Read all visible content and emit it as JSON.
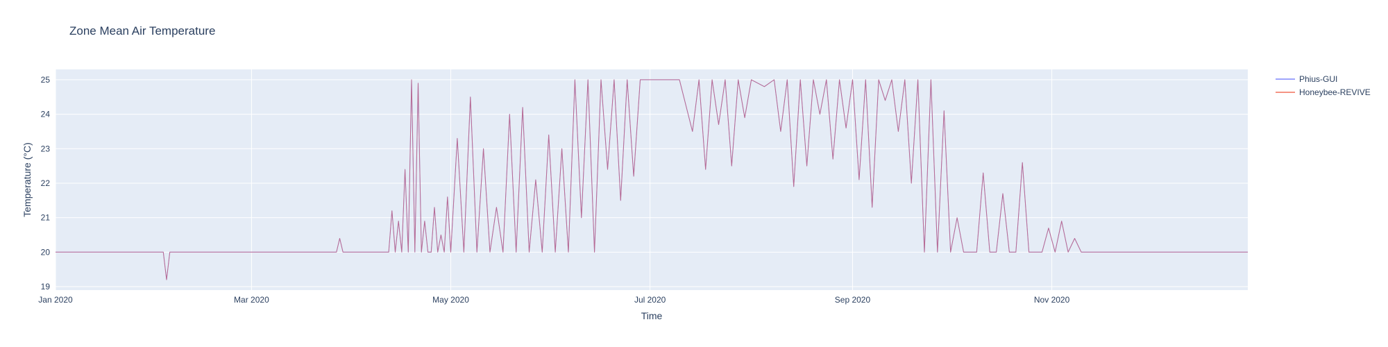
{
  "chart_data": {
    "type": "line",
    "title": "Zone Mean Air Temperature",
    "xlabel": "Time",
    "ylabel": "Temperature (°C)",
    "x_range": [
      "2020-01-01",
      "2020-12-31"
    ],
    "ylim": [
      18.9,
      25.3
    ],
    "y_ticks": [
      "19",
      "20",
      "21",
      "22",
      "23",
      "24",
      "25"
    ],
    "x_ticks": [
      {
        "date": "2020-01-01",
        "label": "Jan 2020"
      },
      {
        "date": "2020-03-01",
        "label": "Mar 2020"
      },
      {
        "date": "2020-05-01",
        "label": "May 2020"
      },
      {
        "date": "2020-07-01",
        "label": "Jul 2020"
      },
      {
        "date": "2020-09-01",
        "label": "Sep 2020"
      },
      {
        "date": "2020-11-01",
        "label": "Nov 2020"
      }
    ],
    "grid": true,
    "legend_position": "top-right",
    "series": [
      {
        "name": "Phius-GUI",
        "color": "#636efa",
        "x": [
          "2020-01-01",
          "2020-02-03",
          "2020-02-04",
          "2020-02-05",
          "2020-03-27",
          "2020-03-28",
          "2020-03-29",
          "2020-04-12",
          "2020-04-13",
          "2020-04-14",
          "2020-04-15",
          "2020-04-16",
          "2020-04-17",
          "2020-04-18",
          "2020-04-19",
          "2020-04-20",
          "2020-04-21",
          "2020-04-22",
          "2020-04-23",
          "2020-04-24",
          "2020-04-25",
          "2020-04-26",
          "2020-04-27",
          "2020-04-28",
          "2020-04-29",
          "2020-04-30",
          "2020-05-01",
          "2020-05-03",
          "2020-05-05",
          "2020-05-07",
          "2020-05-09",
          "2020-05-11",
          "2020-05-13",
          "2020-05-15",
          "2020-05-17",
          "2020-05-19",
          "2020-05-21",
          "2020-05-23",
          "2020-05-25",
          "2020-05-27",
          "2020-05-29",
          "2020-05-31",
          "2020-06-02",
          "2020-06-04",
          "2020-06-06",
          "2020-06-08",
          "2020-06-10",
          "2020-06-12",
          "2020-06-14",
          "2020-06-16",
          "2020-06-18",
          "2020-06-20",
          "2020-06-22",
          "2020-06-24",
          "2020-06-26",
          "2020-06-28",
          "2020-06-30",
          "2020-07-05",
          "2020-07-10",
          "2020-07-14",
          "2020-07-16",
          "2020-07-18",
          "2020-07-20",
          "2020-07-22",
          "2020-07-24",
          "2020-07-26",
          "2020-07-28",
          "2020-07-30",
          "2020-08-01",
          "2020-08-05",
          "2020-08-08",
          "2020-08-10",
          "2020-08-12",
          "2020-08-14",
          "2020-08-16",
          "2020-08-18",
          "2020-08-20",
          "2020-08-22",
          "2020-08-24",
          "2020-08-26",
          "2020-08-28",
          "2020-08-30",
          "2020-09-01",
          "2020-09-03",
          "2020-09-05",
          "2020-09-07",
          "2020-09-09",
          "2020-09-11",
          "2020-09-13",
          "2020-09-15",
          "2020-09-17",
          "2020-09-19",
          "2020-09-21",
          "2020-09-23",
          "2020-09-25",
          "2020-09-27",
          "2020-09-29",
          "2020-10-01",
          "2020-10-03",
          "2020-10-05",
          "2020-10-07",
          "2020-10-09",
          "2020-10-11",
          "2020-10-13",
          "2020-10-15",
          "2020-10-17",
          "2020-10-19",
          "2020-10-21",
          "2020-10-23",
          "2020-10-25",
          "2020-10-27",
          "2020-10-29",
          "2020-10-31",
          "2020-11-02",
          "2020-11-04",
          "2020-11-06",
          "2020-11-08",
          "2020-11-10",
          "2020-12-31"
        ],
        "y": [
          20.0,
          20.0,
          19.2,
          20.0,
          20.0,
          20.4,
          20.0,
          20.0,
          21.2,
          20.0,
          20.9,
          20.0,
          22.4,
          20.0,
          25.0,
          20.0,
          24.9,
          20.0,
          20.9,
          20.0,
          20.0,
          21.3,
          20.0,
          20.5,
          20.0,
          21.6,
          20.0,
          23.3,
          20.0,
          24.5,
          20.0,
          23.0,
          20.0,
          21.3,
          20.0,
          24.0,
          20.0,
          24.2,
          20.0,
          22.1,
          20.0,
          23.4,
          20.0,
          23.0,
          20.0,
          25.0,
          21.0,
          25.0,
          20.0,
          25.0,
          22.4,
          25.0,
          21.5,
          25.0,
          22.2,
          25.0,
          25.0,
          25.0,
          25.0,
          23.5,
          25.0,
          22.4,
          25.0,
          23.7,
          25.0,
          22.5,
          25.0,
          23.9,
          25.0,
          24.8,
          25.0,
          23.5,
          25.0,
          21.9,
          25.0,
          22.5,
          25.0,
          24.0,
          25.0,
          22.7,
          25.0,
          23.6,
          25.0,
          22.1,
          25.0,
          21.3,
          25.0,
          24.4,
          25.0,
          23.5,
          25.0,
          22.0,
          25.0,
          20.0,
          25.0,
          20.0,
          24.1,
          20.0,
          21.0,
          20.0,
          20.0,
          20.0,
          22.3,
          20.0,
          20.0,
          21.7,
          20.0,
          20.0,
          22.6,
          20.0,
          20.0,
          20.0,
          20.7,
          20.0,
          20.9,
          20.0,
          20.4,
          20.0,
          20.0
        ]
      },
      {
        "name": "Honeybee-REVIVE",
        "color": "#ef553b",
        "x": [
          "2020-01-01",
          "2020-02-03",
          "2020-02-04",
          "2020-02-05",
          "2020-03-27",
          "2020-03-28",
          "2020-03-29",
          "2020-04-12",
          "2020-04-13",
          "2020-04-14",
          "2020-04-15",
          "2020-04-16",
          "2020-04-17",
          "2020-04-18",
          "2020-04-19",
          "2020-04-20",
          "2020-04-21",
          "2020-04-22",
          "2020-04-23",
          "2020-04-24",
          "2020-04-25",
          "2020-04-26",
          "2020-04-27",
          "2020-04-28",
          "2020-04-29",
          "2020-04-30",
          "2020-05-01",
          "2020-05-03",
          "2020-05-05",
          "2020-05-07",
          "2020-05-09",
          "2020-05-11",
          "2020-05-13",
          "2020-05-15",
          "2020-05-17",
          "2020-05-19",
          "2020-05-21",
          "2020-05-23",
          "2020-05-25",
          "2020-05-27",
          "2020-05-29",
          "2020-05-31",
          "2020-06-02",
          "2020-06-04",
          "2020-06-06",
          "2020-06-08",
          "2020-06-10",
          "2020-06-12",
          "2020-06-14",
          "2020-06-16",
          "2020-06-18",
          "2020-06-20",
          "2020-06-22",
          "2020-06-24",
          "2020-06-26",
          "2020-06-28",
          "2020-06-30",
          "2020-07-05",
          "2020-07-10",
          "2020-07-14",
          "2020-07-16",
          "2020-07-18",
          "2020-07-20",
          "2020-07-22",
          "2020-07-24",
          "2020-07-26",
          "2020-07-28",
          "2020-07-30",
          "2020-08-01",
          "2020-08-05",
          "2020-08-08",
          "2020-08-10",
          "2020-08-12",
          "2020-08-14",
          "2020-08-16",
          "2020-08-18",
          "2020-08-20",
          "2020-08-22",
          "2020-08-24",
          "2020-08-26",
          "2020-08-28",
          "2020-08-30",
          "2020-09-01",
          "2020-09-03",
          "2020-09-05",
          "2020-09-07",
          "2020-09-09",
          "2020-09-11",
          "2020-09-13",
          "2020-09-15",
          "2020-09-17",
          "2020-09-19",
          "2020-09-21",
          "2020-09-23",
          "2020-09-25",
          "2020-09-27",
          "2020-09-29",
          "2020-10-01",
          "2020-10-03",
          "2020-10-05",
          "2020-10-07",
          "2020-10-09",
          "2020-10-11",
          "2020-10-13",
          "2020-10-15",
          "2020-10-17",
          "2020-10-19",
          "2020-10-21",
          "2020-10-23",
          "2020-10-25",
          "2020-10-27",
          "2020-10-29",
          "2020-10-31",
          "2020-11-02",
          "2020-11-04",
          "2020-11-06",
          "2020-11-08",
          "2020-11-10",
          "2020-12-31"
        ],
        "y": [
          20.0,
          20.0,
          19.2,
          20.0,
          20.0,
          20.4,
          20.0,
          20.0,
          21.2,
          20.0,
          20.9,
          20.0,
          22.4,
          20.0,
          25.0,
          20.0,
          24.9,
          20.0,
          20.9,
          20.0,
          20.0,
          21.3,
          20.0,
          20.5,
          20.0,
          21.6,
          20.0,
          23.3,
          20.0,
          24.5,
          20.0,
          23.0,
          20.0,
          21.3,
          20.0,
          24.0,
          20.0,
          24.2,
          20.0,
          22.1,
          20.0,
          23.4,
          20.0,
          23.0,
          20.0,
          25.0,
          21.0,
          25.0,
          20.0,
          25.0,
          22.4,
          25.0,
          21.5,
          25.0,
          22.2,
          25.0,
          25.0,
          25.0,
          25.0,
          23.5,
          25.0,
          22.4,
          25.0,
          23.7,
          25.0,
          22.5,
          25.0,
          23.9,
          25.0,
          24.8,
          25.0,
          23.5,
          25.0,
          21.9,
          25.0,
          22.5,
          25.0,
          24.0,
          25.0,
          22.7,
          25.0,
          23.6,
          25.0,
          22.1,
          25.0,
          21.3,
          25.0,
          24.4,
          25.0,
          23.5,
          25.0,
          22.0,
          25.0,
          20.0,
          25.0,
          20.0,
          24.1,
          20.0,
          21.0,
          20.0,
          20.0,
          20.0,
          22.3,
          20.0,
          20.0,
          21.7,
          20.0,
          20.0,
          22.6,
          20.0,
          20.0,
          20.0,
          20.7,
          20.0,
          20.9,
          20.0,
          20.4,
          20.0,
          20.0
        ]
      }
    ]
  },
  "colors": {
    "plot_background": "#e5ecf6",
    "grid": "#ffffff",
    "text": "#2a3f5f"
  }
}
